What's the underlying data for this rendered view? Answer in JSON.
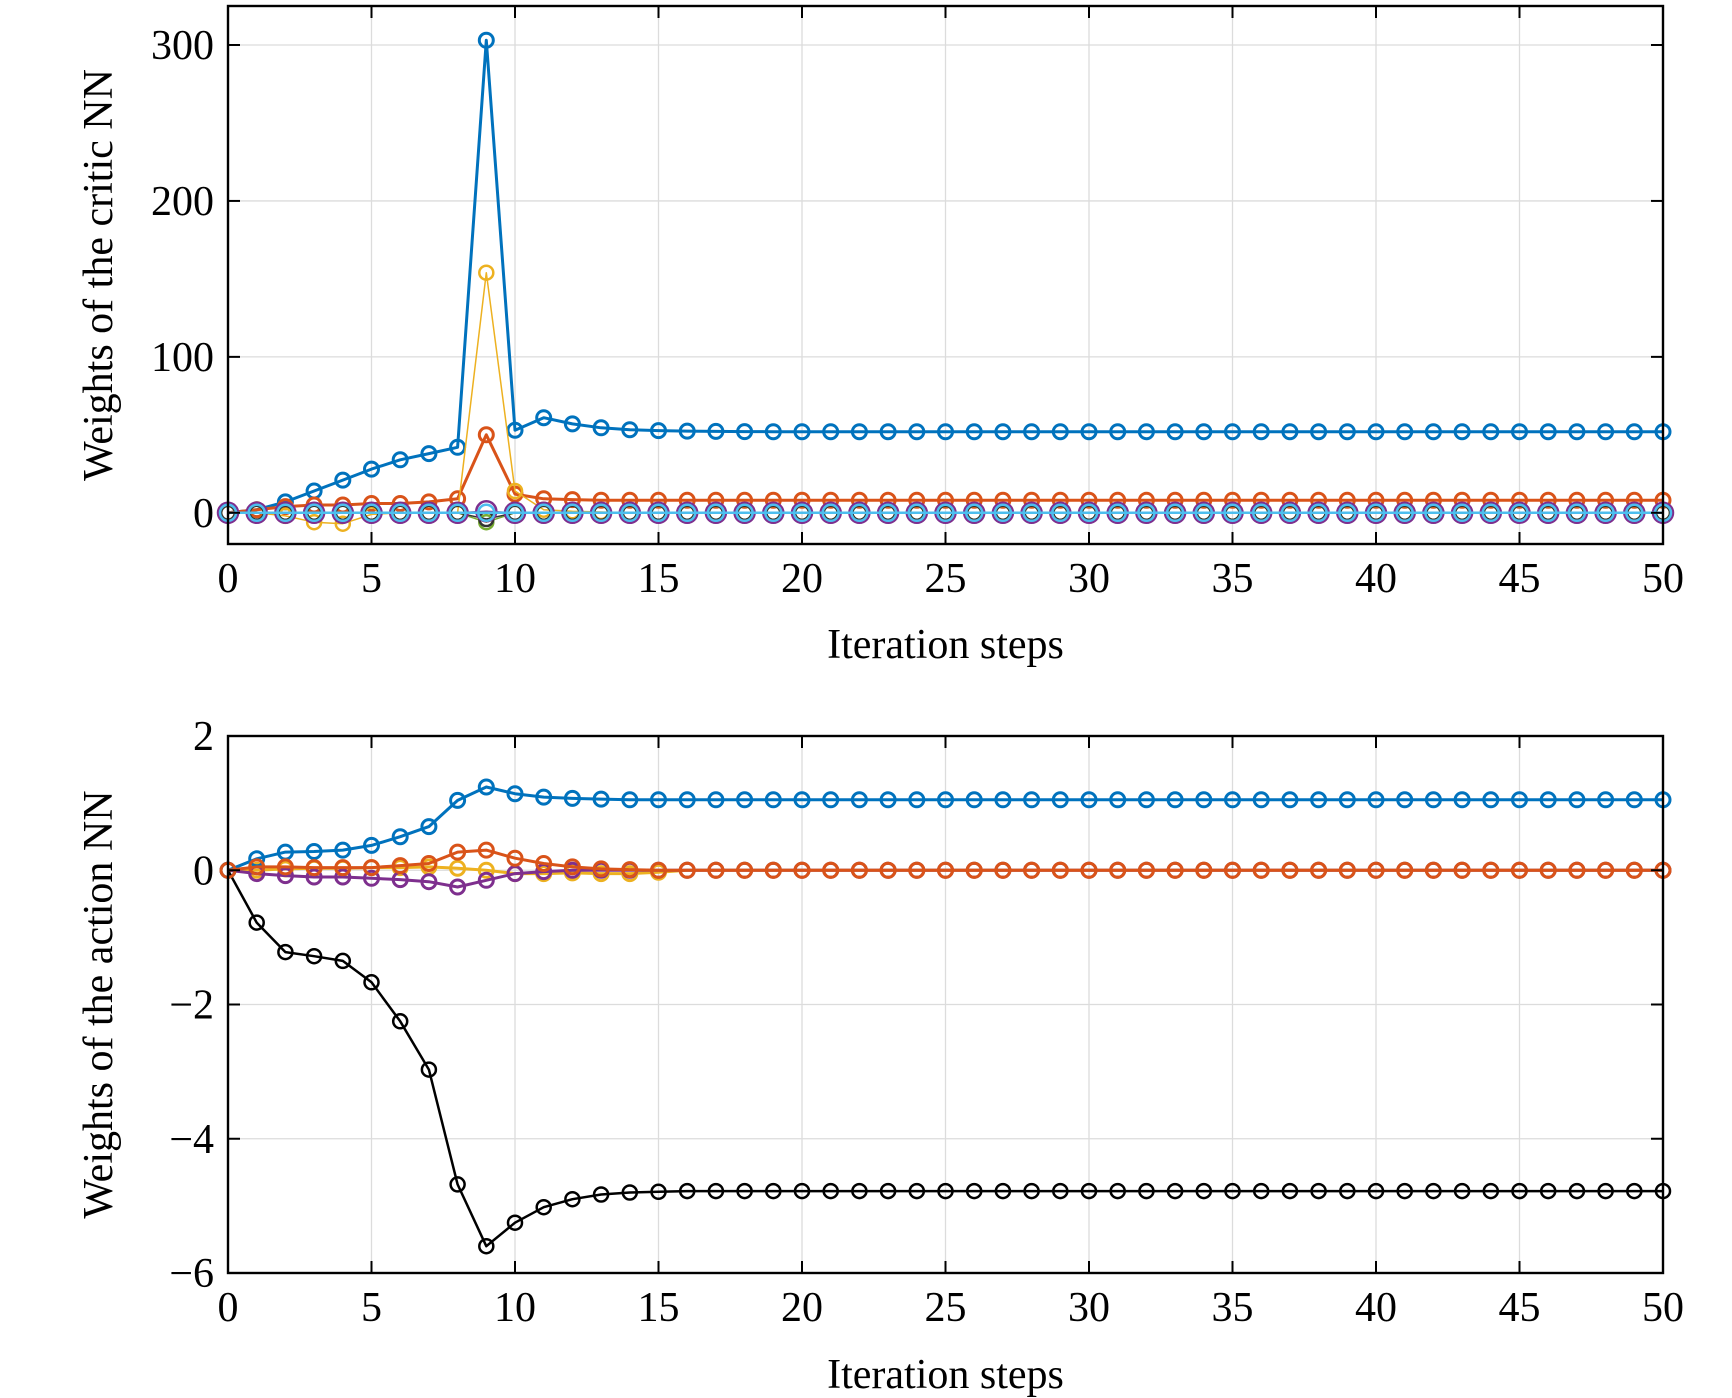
{
  "chart_data": [
    {
      "type": "line",
      "xlabel": "Iteration steps",
      "ylabel": "Weights of the critic NN",
      "xlim": [
        0,
        50
      ],
      "ylim": [
        -20,
        325
      ],
      "xticks": [
        0,
        5,
        10,
        15,
        20,
        25,
        30,
        35,
        40,
        45,
        50
      ],
      "yticks": [
        0,
        100,
        200,
        300
      ],
      "grid": true,
      "marker": "circle",
      "series": [
        {
          "color": "#0072BD",
          "line_width": 3,
          "marker_radius": 7,
          "values": [
            0,
            2,
            7,
            14,
            21,
            28,
            34,
            38,
            42,
            303,
            53,
            61,
            57,
            54.5,
            53.3,
            52.7,
            52.4,
            52.2,
            52.1,
            52,
            52,
            52,
            52,
            52,
            52,
            52,
            52,
            52,
            52,
            52,
            52,
            52,
            52,
            52,
            52,
            52,
            52,
            52,
            52,
            52,
            52,
            52,
            52,
            52,
            52,
            52,
            52,
            52,
            52,
            52,
            52
          ]
        },
        {
          "color": "#D95319",
          "line_width": 3,
          "marker_radius": 7,
          "values": [
            0,
            2,
            4,
            5,
            5,
            6,
            6,
            7,
            9,
            50,
            12,
            9,
            8.5,
            8,
            8,
            8,
            8,
            8,
            8,
            8,
            8,
            8,
            8,
            8,
            8,
            8,
            8,
            8,
            8,
            8,
            8,
            8,
            8,
            8,
            8,
            8,
            8,
            8,
            8,
            8,
            8,
            8,
            8,
            8,
            8,
            8,
            8,
            8,
            8,
            8,
            8
          ]
        },
        {
          "color": "#EDB120",
          "line_width": 1.5,
          "marker_radius": 7,
          "values": [
            0,
            0,
            -2,
            -6,
            -7,
            -1,
            0,
            0,
            0,
            154,
            14,
            2,
            1,
            0.5,
            0,
            0,
            0,
            0,
            0,
            0,
            0,
            0,
            0,
            0,
            0,
            0,
            0,
            0,
            0,
            0,
            0,
            0,
            0,
            0,
            0,
            0,
            0,
            0,
            0,
            0,
            0,
            0,
            0,
            0,
            0,
            0,
            0,
            0,
            0,
            0,
            0
          ]
        },
        {
          "color": "#77AC30",
          "line_width": 1.5,
          "marker_radius": 7,
          "values": [
            0,
            0,
            0,
            0,
            0,
            0,
            0,
            0,
            0,
            -6,
            0,
            0,
            0,
            0,
            0,
            0,
            0,
            0,
            0,
            0,
            0,
            0,
            0,
            0,
            0,
            0,
            0,
            0,
            0,
            0,
            0,
            0,
            0,
            0,
            0,
            0,
            0,
            0,
            0,
            0,
            0,
            0,
            0,
            0,
            0,
            0,
            0,
            0,
            0,
            0,
            0
          ]
        },
        {
          "color": "#333333",
          "line_width": 1.5,
          "marker_radius": 7,
          "values": [
            0,
            0,
            0,
            0,
            0,
            0,
            0,
            0,
            0,
            -4,
            0,
            0,
            0,
            0,
            0,
            0,
            0,
            0,
            0,
            0,
            0,
            0,
            0,
            0,
            0,
            0,
            0,
            0,
            0,
            0,
            0,
            0,
            0,
            0,
            0,
            0,
            0,
            0,
            0,
            0,
            0,
            0,
            0,
            0,
            0,
            0,
            0,
            0,
            0,
            0,
            0
          ]
        },
        {
          "color": "#7E2F8E",
          "line_width": 1.5,
          "marker_radius": 10,
          "values": [
            0,
            0,
            0,
            0,
            0,
            0,
            0,
            0,
            0,
            1,
            0,
            0,
            0,
            0,
            0,
            0,
            0,
            0,
            0,
            0,
            0,
            0,
            0,
            0,
            0,
            0,
            0,
            0,
            0,
            0,
            0,
            0,
            0,
            0,
            0,
            0,
            0,
            0,
            0,
            0,
            0,
            0,
            0,
            0,
            0,
            0,
            0,
            0,
            0,
            0,
            0
          ]
        },
        {
          "color": "#4DBEEE",
          "line_width": 2.5,
          "marker_radius": 8,
          "values": [
            0,
            0,
            0,
            0,
            0,
            0,
            0,
            0,
            0,
            0,
            0,
            0,
            0,
            0,
            0,
            0,
            0,
            0,
            0,
            0,
            0,
            0,
            0,
            0,
            0,
            0,
            0,
            0,
            0,
            0,
            0,
            0,
            0,
            0,
            0,
            0,
            0,
            0,
            0,
            0,
            0,
            0,
            0,
            0,
            0,
            0,
            0,
            0,
            0,
            0,
            0
          ]
        }
      ]
    },
    {
      "type": "line",
      "xlabel": "Iteration steps",
      "ylabel": "Weights of the action NN",
      "xlim": [
        0,
        50
      ],
      "ylim": [
        -6,
        2
      ],
      "xticks": [
        0,
        5,
        10,
        15,
        20,
        25,
        30,
        35,
        40,
        45,
        50
      ],
      "yticks": [
        -6,
        -4,
        -2,
        0,
        2
      ],
      "ytick_labels": [
        "−6",
        "−4",
        "−2",
        "0",
        "2"
      ],
      "grid": true,
      "marker": "circle",
      "series": [
        {
          "color": "#EDB120",
          "line_width": 3,
          "marker_radius": 7,
          "values": [
            0,
            0,
            0.02,
            0.03,
            0.03,
            0.04,
            0.04,
            0.05,
            0.03,
            0,
            -0.05,
            -0.05,
            -0.04,
            -0.05,
            -0.05,
            -0.03,
            0,
            0,
            0,
            0,
            0,
            0,
            0,
            0,
            0,
            0,
            0,
            0,
            0,
            0,
            0,
            0,
            0,
            0,
            0,
            0,
            0,
            0,
            0,
            0,
            0,
            0,
            0,
            0,
            0,
            0,
            0,
            0,
            0,
            0,
            0
          ]
        },
        {
          "color": "#7E2F8E",
          "line_width": 3,
          "marker_radius": 7,
          "values": [
            0,
            -0.05,
            -0.08,
            -0.1,
            -0.1,
            -0.12,
            -0.14,
            -0.17,
            -0.25,
            -0.15,
            -0.05,
            -0.02,
            0,
            0,
            0,
            0,
            0,
            0,
            0,
            0,
            0,
            0,
            0,
            0,
            0,
            0,
            0,
            0,
            0,
            0,
            0,
            0,
            0,
            0,
            0,
            0,
            0,
            0,
            0,
            0,
            0,
            0,
            0,
            0,
            0,
            0,
            0,
            0,
            0,
            0,
            0
          ]
        },
        {
          "color": "#000000",
          "line_width": 2.5,
          "marker_radius": 7,
          "values": [
            0,
            -0.78,
            -1.22,
            -1.28,
            -1.35,
            -1.67,
            -2.25,
            -2.97,
            -4.68,
            -5.6,
            -5.25,
            -5.02,
            -4.9,
            -4.83,
            -4.8,
            -4.79,
            -4.78,
            -4.78,
            -4.78,
            -4.78,
            -4.78,
            -4.78,
            -4.78,
            -4.78,
            -4.78,
            -4.78,
            -4.78,
            -4.78,
            -4.78,
            -4.78,
            -4.78,
            -4.78,
            -4.78,
            -4.78,
            -4.78,
            -4.78,
            -4.78,
            -4.78,
            -4.78,
            -4.78,
            -4.78,
            -4.78,
            -4.78,
            -4.78,
            -4.78,
            -4.78,
            -4.78,
            -4.78,
            -4.78,
            -4.78,
            -4.78
          ]
        },
        {
          "color": "#0072BD",
          "line_width": 3,
          "marker_radius": 7,
          "values": [
            0,
            0.17,
            0.27,
            0.28,
            0.3,
            0.37,
            0.5,
            0.65,
            1.04,
            1.24,
            1.14,
            1.09,
            1.07,
            1.06,
            1.05,
            1.05,
            1.05,
            1.05,
            1.05,
            1.05,
            1.05,
            1.05,
            1.05,
            1.05,
            1.05,
            1.05,
            1.05,
            1.05,
            1.05,
            1.05,
            1.05,
            1.05,
            1.05,
            1.05,
            1.05,
            1.05,
            1.05,
            1.05,
            1.05,
            1.05,
            1.05,
            1.05,
            1.05,
            1.05,
            1.05,
            1.05,
            1.05,
            1.05,
            1.05,
            1.05,
            1.05
          ]
        },
        {
          "color": "#D95319",
          "line_width": 3,
          "marker_radius": 7,
          "values": [
            0,
            0.05,
            0.05,
            0.04,
            0.04,
            0.04,
            0.07,
            0.1,
            0.27,
            0.3,
            0.18,
            0.1,
            0.05,
            0.02,
            0.01,
            0,
            0,
            0,
            0,
            0,
            0,
            0,
            0,
            0,
            0,
            0,
            0,
            0,
            0,
            0,
            0,
            0,
            0,
            0,
            0,
            0,
            0,
            0,
            0,
            0,
            0,
            0,
            0,
            0,
            0,
            0,
            0,
            0,
            0,
            0,
            0
          ]
        }
      ]
    }
  ]
}
